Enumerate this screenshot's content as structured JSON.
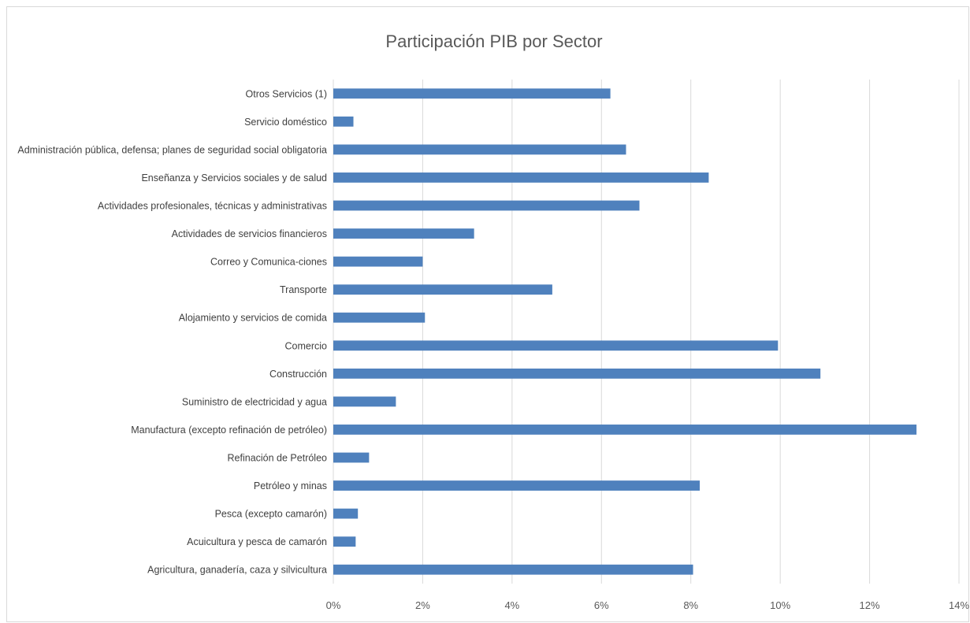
{
  "chart_data": {
    "type": "bar",
    "orientation": "horizontal",
    "title": "Participación PIB por Sector",
    "xlabel": "",
    "ylabel": "",
    "xlim": [
      0,
      14
    ],
    "x_ticks": [
      0,
      2,
      4,
      6,
      8,
      10,
      12,
      14
    ],
    "x_tick_labels": [
      "0%",
      "2%",
      "4%",
      "6%",
      "8%",
      "10%",
      "12%",
      "14%"
    ],
    "grid": true,
    "legend": "none",
    "bar_color": "#4f81bd",
    "categories": [
      "Otros Servicios (1)",
      "Servicio doméstico",
      "Administración pública, defensa; planes de seguridad social obligatoria",
      "Enseñanza  y Servicios sociales y de salud",
      "Actividades profesionales, técnicas y administrativas",
      "Actividades de servicios financieros",
      "Correo y Comunica-ciones",
      "Transporte",
      "Alojamiento y servicios de comida",
      "Comercio",
      "Construcción",
      "Suministro de electricidad y agua",
      "Manufactura (excepto refinación de petróleo)",
      "Refinación de Petróleo",
      "Petróleo y minas",
      "Pesca (excepto camarón)",
      "Acuicultura y pesca de camarón",
      "Agricultura, ganadería, caza y silvicultura"
    ],
    "values": [
      6.2,
      0.45,
      6.55,
      8.4,
      6.85,
      3.15,
      2.0,
      4.9,
      2.05,
      9.95,
      10.9,
      1.4,
      13.05,
      0.8,
      8.2,
      0.55,
      0.5,
      8.05
    ]
  }
}
